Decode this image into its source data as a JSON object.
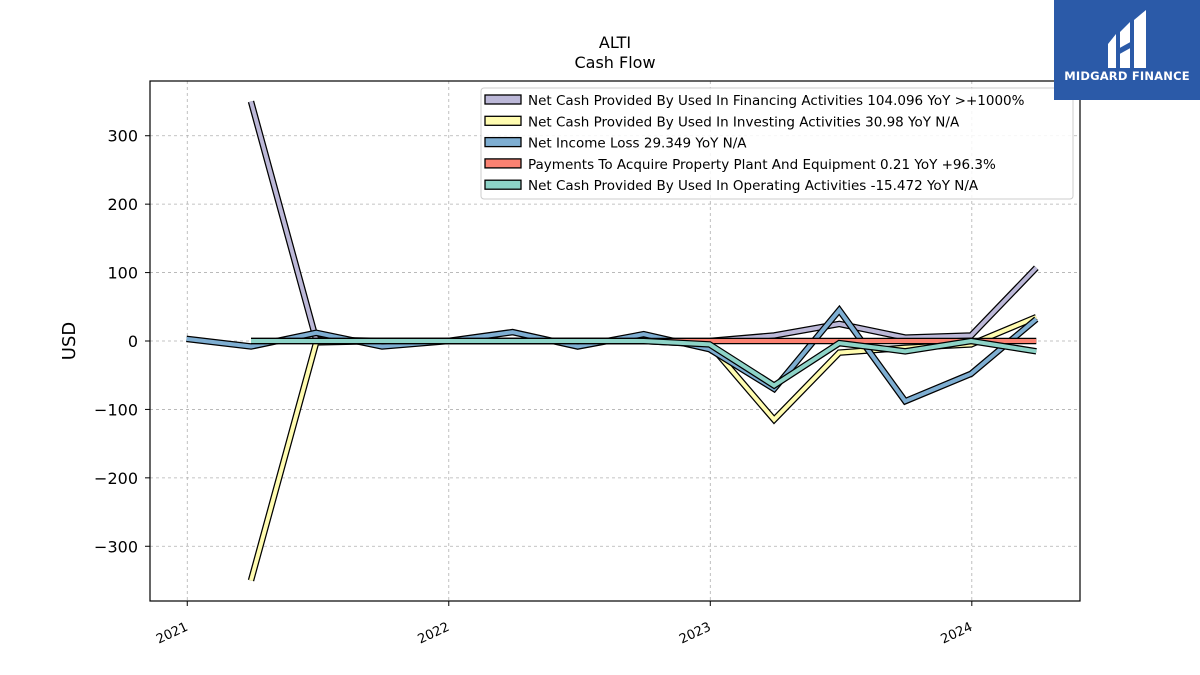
{
  "chart_data": {
    "type": "line",
    "title": "ALTI",
    "subtitle": "Cash Flow",
    "xlabel": "",
    "ylabel": "USD",
    "xlim": [
      "2020-11-10",
      "2024-05-31"
    ],
    "ylim": [
      -380,
      380
    ],
    "yticks": [
      -300,
      -200,
      -100,
      0,
      100,
      200,
      300
    ],
    "yticklabels": [
      "−300",
      "−200",
      "−100",
      "0",
      "100",
      "200",
      "300"
    ],
    "xticks": [
      "2021-01-01",
      "2022-01-01",
      "2023-01-01",
      "2024-01-01"
    ],
    "xticklabels": [
      "2021",
      "2022",
      "2023",
      "2024"
    ],
    "grid": true,
    "legend_position": "top-right",
    "series": [
      {
        "name": "Net Cash Provided By Used In Financing Activities  104.096 YoY >+1000%",
        "color": "#bcb8d8",
        "x": [
          "2021-03-31",
          "2021-06-30",
          "2021-09-30",
          "2021-12-31",
          "2022-03-31",
          "2022-06-30",
          "2022-09-30",
          "2022-12-31",
          "2023-03-31",
          "2023-06-30",
          "2023-09-30",
          "2023-12-31",
          "2024-03-31"
        ],
        "y": [
          350,
          2,
          0,
          0,
          0,
          0,
          0,
          0,
          8,
          25,
          5,
          8,
          107
        ]
      },
      {
        "name": "Net Cash Provided By Used In Investing Activities  30.98 YoY N/A",
        "color": "#fffcb0",
        "x": [
          "2021-03-31",
          "2021-06-30",
          "2021-09-30",
          "2021-12-31",
          "2022-03-31",
          "2022-06-30",
          "2022-09-30",
          "2022-12-31",
          "2023-03-31",
          "2023-06-30",
          "2023-09-30",
          "2023-12-31",
          "2024-03-31"
        ],
        "y": [
          -350,
          -2,
          0,
          0,
          0,
          0,
          0,
          -5,
          -115,
          -17,
          -10,
          -5,
          35
        ]
      },
      {
        "name": "Net Income Loss  29.349 YoY N/A",
        "color": "#7eaed2",
        "x": [
          "2020-12-31",
          "2021-03-31",
          "2021-06-30",
          "2021-09-30",
          "2021-12-31",
          "2022-03-31",
          "2022-06-30",
          "2022-09-30",
          "2022-12-31",
          "2023-03-31",
          "2023-06-30",
          "2023-09-30",
          "2023-12-31",
          "2024-03-31"
        ],
        "y": [
          3,
          -8,
          12,
          -8,
          0,
          13,
          -8,
          10,
          -12,
          -70,
          45,
          -88,
          -48,
          32
        ]
      },
      {
        "name": "Payments To Acquire Property Plant And Equipment  0.21 YoY +96.3%",
        "color": "#fb8272",
        "x": [
          "2021-03-31",
          "2021-06-30",
          "2021-09-30",
          "2021-12-31",
          "2022-03-31",
          "2022-06-30",
          "2022-09-30",
          "2022-12-31",
          "2023-03-31",
          "2023-06-30",
          "2023-09-30",
          "2023-12-31",
          "2024-03-31"
        ],
        "y": [
          0,
          0,
          0,
          0,
          0,
          0,
          0,
          0,
          0,
          0,
          0,
          0,
          0
        ]
      },
      {
        "name": "Net Cash Provided By Used In Operating Activities  -15.472 YoY N/A",
        "color": "#8dd3c7",
        "x": [
          "2021-03-31",
          "2021-06-30",
          "2021-09-30",
          "2021-12-31",
          "2022-03-31",
          "2022-06-30",
          "2022-09-30",
          "2022-12-31",
          "2023-03-31",
          "2023-06-30",
          "2023-09-30",
          "2023-12-31",
          "2024-03-31"
        ],
        "y": [
          0,
          0,
          0,
          0,
          0,
          0,
          0,
          -5,
          -65,
          -3,
          -15,
          0,
          -15
        ]
      }
    ]
  },
  "logo": {
    "text": "MIDGARD FINANCE",
    "background": "#2b5aa8"
  }
}
